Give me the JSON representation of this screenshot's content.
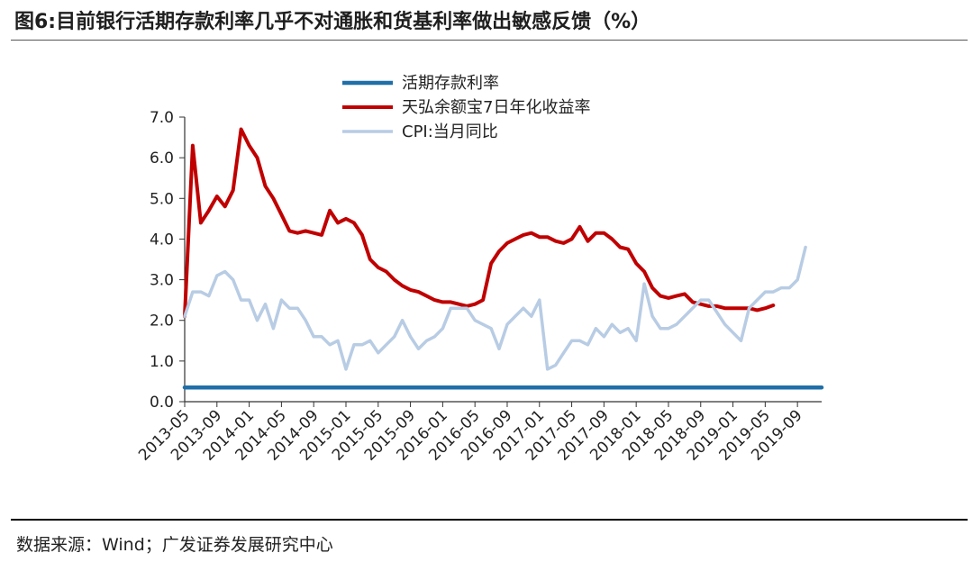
{
  "header": {
    "title": "图6:目前银行活期存款利率几乎不对通胀和货基利率做出敏感反馈（%）"
  },
  "footer": {
    "source": "数据来源：Wind；广发证券发展研究中心"
  },
  "chart_data": {
    "type": "line",
    "title": "图6:目前银行活期存款利率几乎不对通胀和货基利率做出敏感反馈（%）",
    "xlabel": "",
    "ylabel": "",
    "ylim": [
      0,
      7
    ],
    "yticks": [
      "0.0",
      "1.0",
      "2.0",
      "3.0",
      "4.0",
      "5.0",
      "6.0",
      "7.0"
    ],
    "xlim": [
      "2013-05",
      "2019-12"
    ],
    "xticks": [
      "2013-05",
      "2013-09",
      "2014-01",
      "2014-05",
      "2014-09",
      "2015-01",
      "2015-05",
      "2015-09",
      "2016-01",
      "2016-05",
      "2016-09",
      "2017-01",
      "2017-05",
      "2017-09",
      "2018-01",
      "2018-05",
      "2018-09",
      "2019-01",
      "2019-05",
      "2019-09"
    ],
    "grid": false,
    "legend": "top-center",
    "series": [
      {
        "name": "活期存款利率",
        "color": "#1f6fa8",
        "points": [
          [
            "2013-05",
            0.35
          ],
          [
            "2019-12",
            0.35
          ]
        ]
      },
      {
        "name": "天弘余额宝7日年化收益率",
        "color": "#c00000",
        "points": [
          [
            "2013-05",
            2.1
          ],
          [
            "2013-06",
            6.3
          ],
          [
            "2013-07",
            4.4
          ],
          [
            "2013-08",
            4.7
          ],
          [
            "2013-09",
            5.05
          ],
          [
            "2013-10",
            4.8
          ],
          [
            "2013-11",
            5.2
          ],
          [
            "2013-12",
            6.7
          ],
          [
            "2014-01",
            6.3
          ],
          [
            "2014-02",
            6.0
          ],
          [
            "2014-03",
            5.3
          ],
          [
            "2014-04",
            5.0
          ],
          [
            "2014-05",
            4.6
          ],
          [
            "2014-06",
            4.2
          ],
          [
            "2014-07",
            4.15
          ],
          [
            "2014-08",
            4.2
          ],
          [
            "2014-09",
            4.15
          ],
          [
            "2014-10",
            4.1
          ],
          [
            "2014-11",
            4.7
          ],
          [
            "2014-12",
            4.4
          ],
          [
            "2015-01",
            4.5
          ],
          [
            "2015-02",
            4.4
          ],
          [
            "2015-03",
            4.1
          ],
          [
            "2015-04",
            3.5
          ],
          [
            "2015-05",
            3.3
          ],
          [
            "2015-06",
            3.2
          ],
          [
            "2015-07",
            3.0
          ],
          [
            "2015-08",
            2.85
          ],
          [
            "2015-09",
            2.75
          ],
          [
            "2015-10",
            2.7
          ],
          [
            "2015-11",
            2.6
          ],
          [
            "2015-12",
            2.5
          ],
          [
            "2016-01",
            2.45
          ],
          [
            "2016-02",
            2.45
          ],
          [
            "2016-03",
            2.4
          ],
          [
            "2016-04",
            2.35
          ],
          [
            "2016-05",
            2.4
          ],
          [
            "2016-06",
            2.5
          ],
          [
            "2016-07",
            3.4
          ],
          [
            "2016-08",
            3.7
          ],
          [
            "2016-09",
            3.9
          ],
          [
            "2016-10",
            4.0
          ],
          [
            "2016-11",
            4.1
          ],
          [
            "2016-12",
            4.15
          ],
          [
            "2017-01",
            4.05
          ],
          [
            "2017-02",
            4.05
          ],
          [
            "2017-03",
            3.95
          ],
          [
            "2017-04",
            3.9
          ],
          [
            "2017-05",
            4.0
          ],
          [
            "2017-06",
            4.3
          ],
          [
            "2017-07",
            3.95
          ],
          [
            "2017-08",
            4.15
          ],
          [
            "2017-09",
            4.15
          ],
          [
            "2017-10",
            4.0
          ],
          [
            "2017-11",
            3.8
          ],
          [
            "2017-12",
            3.75
          ],
          [
            "2018-01",
            3.4
          ],
          [
            "2018-02",
            3.2
          ],
          [
            "2018-03",
            2.8
          ],
          [
            "2018-04",
            2.6
          ],
          [
            "2018-05",
            2.55
          ],
          [
            "2018-06",
            2.6
          ],
          [
            "2018-07",
            2.65
          ],
          [
            "2018-08",
            2.45
          ],
          [
            "2018-09",
            2.4
          ],
          [
            "2018-10",
            2.35
          ],
          [
            "2018-11",
            2.35
          ],
          [
            "2018-12",
            2.3
          ],
          [
            "2019-01",
            2.3
          ],
          [
            "2019-02",
            2.3
          ],
          [
            "2019-03",
            2.3
          ],
          [
            "2019-04",
            2.25
          ],
          [
            "2019-05",
            2.3
          ],
          [
            "2019-06",
            2.37
          ]
        ]
      },
      {
        "name": "CPI:当月同比",
        "color": "#b8cce4",
        "points": [
          [
            "2013-05",
            2.1
          ],
          [
            "2013-06",
            2.7
          ],
          [
            "2013-07",
            2.7
          ],
          [
            "2013-08",
            2.6
          ],
          [
            "2013-09",
            3.1
          ],
          [
            "2013-10",
            3.2
          ],
          [
            "2013-11",
            3.0
          ],
          [
            "2013-12",
            2.5
          ],
          [
            "2014-01",
            2.5
          ],
          [
            "2014-02",
            2.0
          ],
          [
            "2014-03",
            2.4
          ],
          [
            "2014-04",
            1.8
          ],
          [
            "2014-05",
            2.5
          ],
          [
            "2014-06",
            2.3
          ],
          [
            "2014-07",
            2.3
          ],
          [
            "2014-08",
            2.0
          ],
          [
            "2014-09",
            1.6
          ],
          [
            "2014-10",
            1.6
          ],
          [
            "2014-11",
            1.4
          ],
          [
            "2014-12",
            1.5
          ],
          [
            "2015-01",
            0.8
          ],
          [
            "2015-02",
            1.4
          ],
          [
            "2015-03",
            1.4
          ],
          [
            "2015-04",
            1.5
          ],
          [
            "2015-05",
            1.2
          ],
          [
            "2015-06",
            1.4
          ],
          [
            "2015-07",
            1.6
          ],
          [
            "2015-08",
            2.0
          ],
          [
            "2015-09",
            1.6
          ],
          [
            "2015-10",
            1.3
          ],
          [
            "2015-11",
            1.5
          ],
          [
            "2015-12",
            1.6
          ],
          [
            "2016-01",
            1.8
          ],
          [
            "2016-02",
            2.3
          ],
          [
            "2016-03",
            2.3
          ],
          [
            "2016-04",
            2.3
          ],
          [
            "2016-05",
            2.0
          ],
          [
            "2016-06",
            1.9
          ],
          [
            "2016-07",
            1.8
          ],
          [
            "2016-08",
            1.3
          ],
          [
            "2016-09",
            1.9
          ],
          [
            "2016-10",
            2.1
          ],
          [
            "2016-11",
            2.3
          ],
          [
            "2016-12",
            2.1
          ],
          [
            "2017-01",
            2.5
          ],
          [
            "2017-02",
            0.8
          ],
          [
            "2017-03",
            0.9
          ],
          [
            "2017-04",
            1.2
          ],
          [
            "2017-05",
            1.5
          ],
          [
            "2017-06",
            1.5
          ],
          [
            "2017-07",
            1.4
          ],
          [
            "2017-08",
            1.8
          ],
          [
            "2017-09",
            1.6
          ],
          [
            "2017-10",
            1.9
          ],
          [
            "2017-11",
            1.7
          ],
          [
            "2017-12",
            1.8
          ],
          [
            "2018-01",
            1.5
          ],
          [
            "2018-02",
            2.9
          ],
          [
            "2018-03",
            2.1
          ],
          [
            "2018-04",
            1.8
          ],
          [
            "2018-05",
            1.8
          ],
          [
            "2018-06",
            1.9
          ],
          [
            "2018-07",
            2.1
          ],
          [
            "2018-08",
            2.3
          ],
          [
            "2018-09",
            2.5
          ],
          [
            "2018-10",
            2.5
          ],
          [
            "2018-11",
            2.2
          ],
          [
            "2018-12",
            1.9
          ],
          [
            "2019-01",
            1.7
          ],
          [
            "2019-02",
            1.5
          ],
          [
            "2019-03",
            2.3
          ],
          [
            "2019-04",
            2.5
          ],
          [
            "2019-05",
            2.7
          ],
          [
            "2019-06",
            2.7
          ],
          [
            "2019-07",
            2.8
          ],
          [
            "2019-08",
            2.8
          ],
          [
            "2019-09",
            3.0
          ],
          [
            "2019-10",
            3.8
          ]
        ]
      }
    ]
  }
}
